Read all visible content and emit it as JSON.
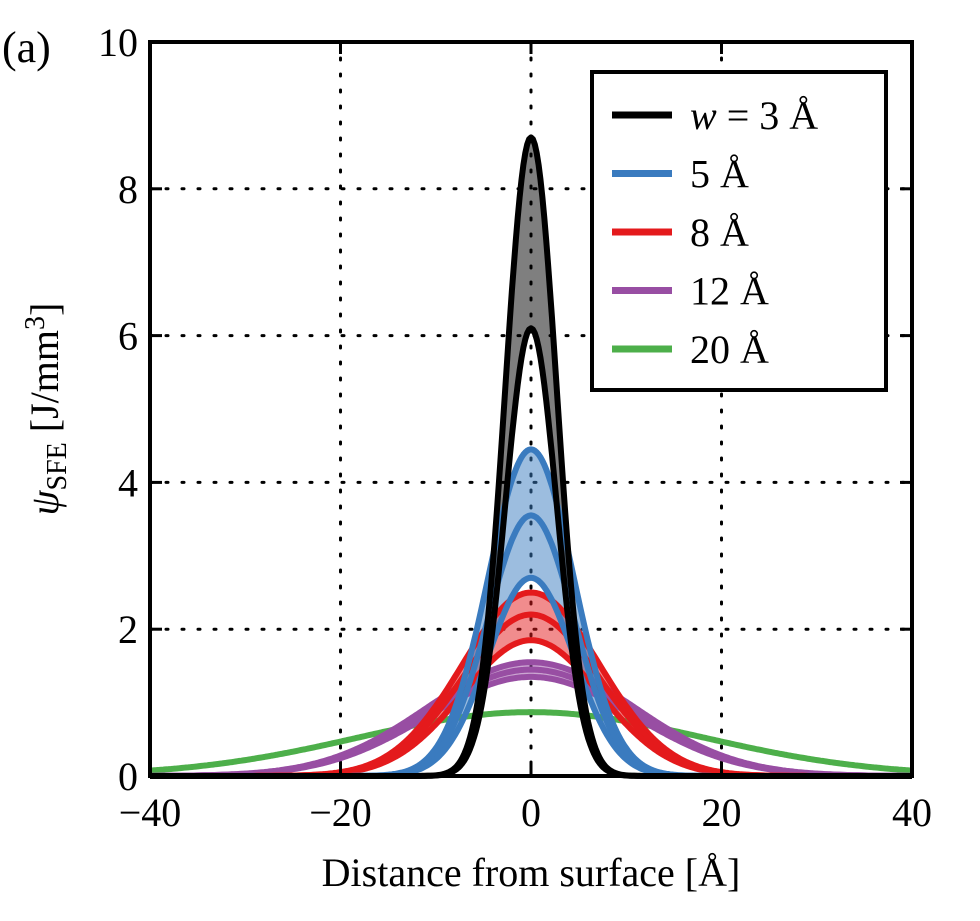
{
  "panel_label": "(a)",
  "chart_data": {
    "type": "line",
    "xlabel": "Distance from surface [Å]",
    "ylabel_main": "ψ",
    "ylabel_sub": "SFE",
    "ylabel_unit": " [J/mm",
    "ylabel_sup": "3",
    "ylabel_close": "]",
    "xlim": [
      -40,
      40
    ],
    "ylim": [
      0,
      10
    ],
    "xticks": [
      -40,
      -20,
      0,
      20,
      40
    ],
    "xtick_labels": [
      "−40",
      "−20",
      "0",
      "20",
      "40"
    ],
    "yticks": [
      0,
      2,
      4,
      6,
      8,
      10
    ],
    "ytick_labels": [
      "0",
      "2",
      "4",
      "6",
      "8",
      "10"
    ],
    "grid": "dotted",
    "legend_position": "top-right",
    "series": [
      {
        "name": "w = 3 Å",
        "legend_var": "w",
        "legend_rest": " = 3 Å",
        "color": "#000000",
        "width_param": 3,
        "peaks": [
          8.7,
          6.1
        ]
      },
      {
        "name": "5 Å",
        "color": "#3a7bbf",
        "width_param": 5,
        "peaks": [
          4.45,
          3.55,
          2.7
        ]
      },
      {
        "name": "8 Å",
        "color": "#e41a1c",
        "width_param": 8,
        "peaks": [
          2.5,
          2.2,
          1.85
        ]
      },
      {
        "name": "12 Å",
        "color": "#984ea3",
        "width_param": 12,
        "peaks": [
          1.55,
          1.45,
          1.35
        ]
      },
      {
        "name": "20 Å",
        "color": "#4daf4a",
        "width_param": 20,
        "peaks": [
          0.87
        ]
      }
    ]
  }
}
